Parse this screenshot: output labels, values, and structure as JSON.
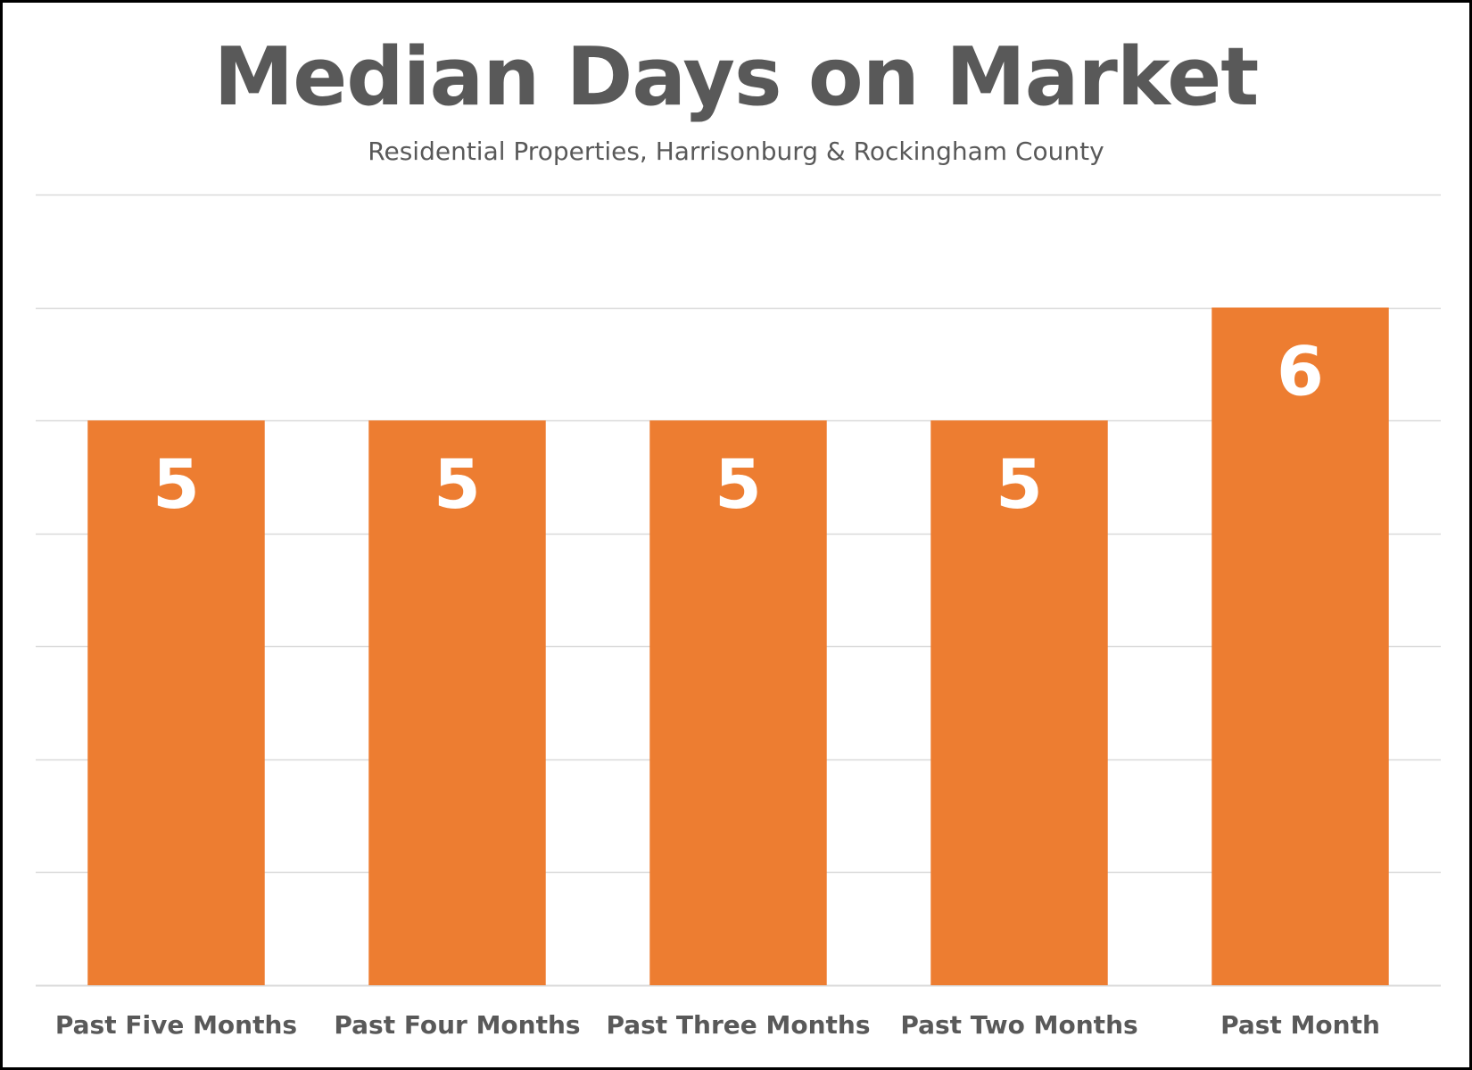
{
  "chart_data": {
    "type": "bar",
    "title": "Median Days on Market",
    "subtitle": "Residential Properties, Harrisonburg & Rockingham County",
    "categories": [
      "Past Five Months",
      "Past Four Months",
      "Past Three Months",
      "Past Two Months",
      "Past Month"
    ],
    "values": [
      5,
      5,
      5,
      5,
      6
    ],
    "data_labels": [
      "5",
      "5",
      "5",
      "5",
      "6"
    ],
    "xlabel": "",
    "ylabel": "",
    "ylim": [
      0,
      7
    ],
    "y_gridline_step": 1,
    "grid": true,
    "legend": "none",
    "bar_color": "#ED7D31",
    "data_label_color": "#FFFFFF",
    "text_color": "#595959",
    "gridline_color": "#D9D9D9"
  }
}
